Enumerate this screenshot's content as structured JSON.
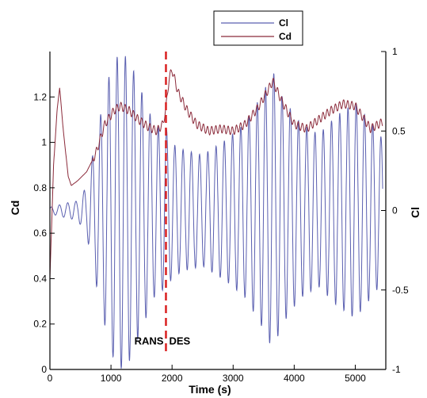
{
  "chart_data": {
    "type": "line",
    "xlabel": "Time (s)",
    "ylabel_left": "Cd",
    "ylabel_right": "Cl",
    "xlim": [
      0,
      5500
    ],
    "ylim_left": [
      0,
      1.4
    ],
    "ylim_right": [
      -1,
      1
    ],
    "xticks": [
      0,
      1000,
      2000,
      3000,
      4000,
      5000
    ],
    "xtick_labels": [
      "0",
      "1000",
      "2000",
      "3000",
      "4000",
      "5000"
    ],
    "yticks_left": [
      0,
      0.2,
      0.4,
      0.6,
      0.8,
      1,
      1.2
    ],
    "ytick_labels_left": [
      "0",
      "0.2",
      "0.4",
      "0.6",
      "0.8",
      "1",
      "1.2"
    ],
    "yticks_right": [
      -1,
      -0.5,
      0,
      0.5,
      1
    ],
    "ytick_labels_right": [
      "-1",
      "-0.5",
      "0",
      "0.5",
      "1"
    ],
    "grid": false,
    "legend_position": "top-center",
    "series": [
      {
        "name": "Cl",
        "axis": "right",
        "color": "#5a5fb0",
        "t_start": 0,
        "t_end": 5450,
        "period": 135,
        "mean": 0,
        "envelope": {
          "t": [
            0,
            300,
            450,
            600,
            800,
            1000,
            1150,
            1300,
            1500,
            1700,
            1850,
            1900,
            2000,
            2200,
            2500,
            2900,
            3200,
            3500,
            3650,
            3800,
            4100,
            4400,
            4700,
            5000,
            5200,
            5450
          ],
          "amplitude": [
            0.02,
            0.05,
            0.06,
            0.15,
            0.55,
            0.9,
            1.0,
            0.95,
            0.75,
            0.55,
            0.5,
            0.52,
            0.42,
            0.38,
            0.35,
            0.45,
            0.55,
            0.75,
            0.88,
            0.72,
            0.55,
            0.48,
            0.6,
            0.68,
            0.58,
            0.45
          ]
        }
      },
      {
        "name": "Cd",
        "axis": "left",
        "color": "#8b2a3a",
        "points": [
          [
            0,
            0.4
          ],
          [
            60,
            0.9
          ],
          [
            120,
            1.15
          ],
          [
            160,
            1.24
          ],
          [
            220,
            1.05
          ],
          [
            300,
            0.85
          ],
          [
            350,
            0.81
          ],
          [
            450,
            0.83
          ],
          [
            600,
            0.87
          ],
          [
            750,
            0.95
          ],
          [
            900,
            1.08
          ],
          [
            1050,
            1.14
          ],
          [
            1150,
            1.16
          ],
          [
            1300,
            1.14
          ],
          [
            1450,
            1.1
          ],
          [
            1600,
            1.07
          ],
          [
            1750,
            1.05
          ],
          [
            1850,
            1.08
          ],
          [
            1900,
            1.15
          ],
          [
            1950,
            1.28
          ],
          [
            2000,
            1.32
          ],
          [
            2100,
            1.22
          ],
          [
            2250,
            1.14
          ],
          [
            2400,
            1.08
          ],
          [
            2600,
            1.05
          ],
          [
            2800,
            1.06
          ],
          [
            3000,
            1.05
          ],
          [
            3200,
            1.08
          ],
          [
            3400,
            1.15
          ],
          [
            3550,
            1.22
          ],
          [
            3650,
            1.27
          ],
          [
            3800,
            1.18
          ],
          [
            4000,
            1.08
          ],
          [
            4200,
            1.06
          ],
          [
            4400,
            1.1
          ],
          [
            4600,
            1.14
          ],
          [
            4800,
            1.17
          ],
          [
            5000,
            1.16
          ],
          [
            5150,
            1.1
          ],
          [
            5250,
            1.06
          ],
          [
            5450,
            1.09
          ]
        ]
      }
    ],
    "annotations": [
      {
        "type": "vline",
        "x": 1900,
        "style": "dashed",
        "color": "#d92020"
      },
      {
        "type": "text",
        "text": "RANS",
        "anchor": "end",
        "x": 1900,
        "y": 0.11
      },
      {
        "type": "text",
        "text": "DES",
        "anchor": "start",
        "x": 1900,
        "y": 0.11
      }
    ]
  }
}
